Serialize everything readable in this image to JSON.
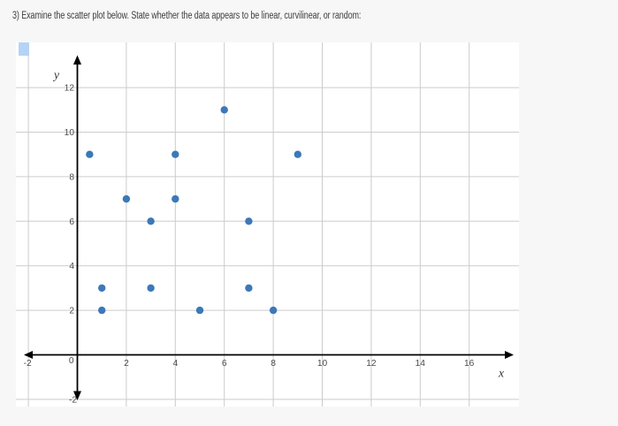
{
  "page": {
    "background_color": "#f7f7f7"
  },
  "question": {
    "text": "3) Examine the scatter plot below. State whether the data appears to be linear, curvilinear, or random:"
  },
  "chart_data": {
    "type": "scatter",
    "title": "",
    "xlabel": "x",
    "ylabel": "y",
    "points": [
      [
        0.5,
        9
      ],
      [
        1,
        2
      ],
      [
        1,
        3
      ],
      [
        2,
        7
      ],
      [
        3,
        3
      ],
      [
        3,
        6
      ],
      [
        4,
        7
      ],
      [
        4,
        9
      ],
      [
        5,
        2
      ],
      [
        6,
        11
      ],
      [
        7,
        3
      ],
      [
        7,
        6
      ],
      [
        8,
        2
      ],
      [
        9,
        9
      ]
    ],
    "x_tick_labels": [
      "-2",
      "0",
      "2",
      "4",
      "6",
      "8",
      "10",
      "12",
      "14",
      "16"
    ],
    "y_tick_labels": [
      "-2",
      "2",
      "4",
      "6",
      "8",
      "10",
      "12"
    ],
    "x_gridlines": [
      -2,
      2,
      4,
      6,
      8,
      10,
      12,
      14,
      16
    ],
    "y_gridlines": [
      -2,
      2,
      4,
      6,
      8,
      10,
      12
    ],
    "xlim": [
      -2.5,
      17.8
    ],
    "ylim": [
      -2.3,
      14
    ],
    "grid": true,
    "legend_position": "none",
    "point_color": "#3c78b8",
    "grid_color": "#cccccc",
    "axis_color": "#000000",
    "tick_label_color": "#4a4a4a",
    "axis_letter_color": "#333333",
    "plot_background": "#ffffff"
  },
  "artifacts": {
    "selection_marker_color": "#b5d3f5"
  }
}
